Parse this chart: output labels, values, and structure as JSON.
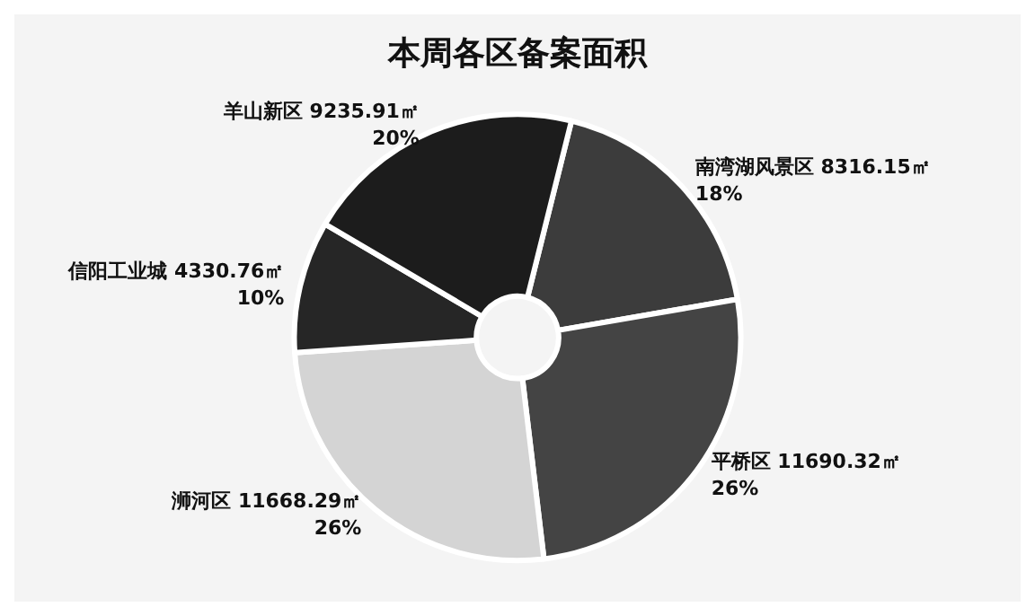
{
  "chart_data": {
    "type": "donut",
    "title": "本周各区备案面积",
    "categories": [
      "南湾湖风景区",
      "平桥区",
      "浉河区",
      "信阳工业城",
      "羊山新区"
    ],
    "values": [
      8316.15,
      11690.32,
      11668.29,
      4330.76,
      9235.91
    ],
    "value_labels": [
      "8316.15㎡\n18%",
      "11690.32㎡\n26%",
      "11668.29㎡\n26%",
      "4330.76㎡\n10%",
      "9235.91㎡\n20%"
    ],
    "colors": [
      "#3c3c3c",
      "#444444",
      "#d4d4d4",
      "#262626",
      "#1c1c1c"
    ],
    "legend": false
  }
}
